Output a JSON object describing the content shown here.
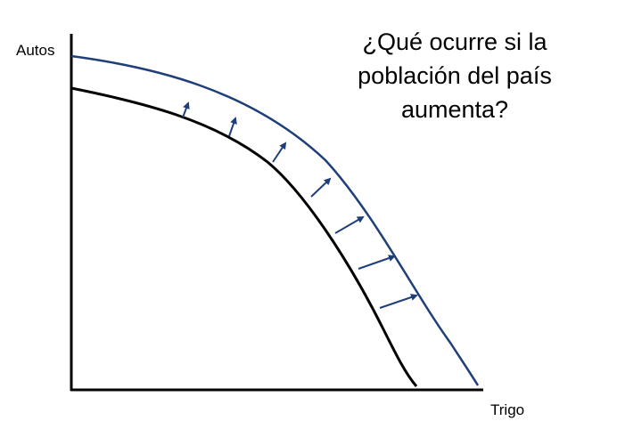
{
  "diagram": {
    "y_axis_label": "Autos",
    "x_axis_label": "Trigo",
    "question_lines": [
      "¿Qué ocurre si la",
      "población del país",
      "aumenta?"
    ],
    "colors": {
      "axes": "#000000",
      "original_frontier": "#000000",
      "expanded_frontier": "#1f3f7a",
      "arrows": "#1f3f7a"
    }
  }
}
